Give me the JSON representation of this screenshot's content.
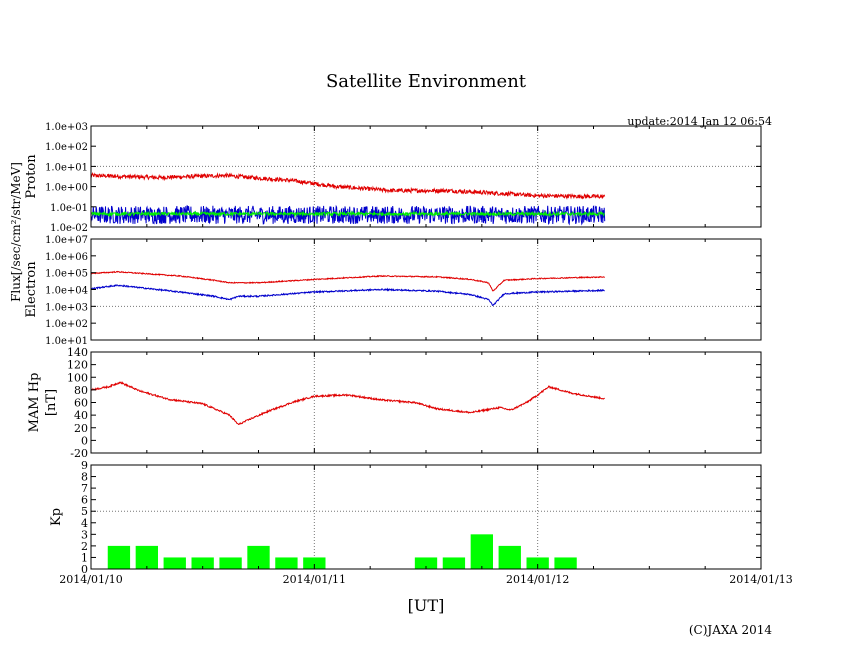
{
  "title": "Satellite Environment",
  "update": "update:2014 Jan 12 06:54",
  "copyright": "(C)JAXA 2014",
  "flux_label": "Flux[/sec/cm²/str/MeV]",
  "colors": {
    "red": "#e00000",
    "blue": "#0000cc",
    "green": "#00ee00",
    "grid": "#777777"
  },
  "chart_data": [
    {
      "id": "proton",
      "type": "line",
      "yscale": "log",
      "ylabel": "Proton",
      "ylim": [
        -2,
        3
      ],
      "yticks": [
        "1.0e-02",
        "1.0e-01",
        "1.0e+00",
        "1.0e+01",
        "1.0e+02",
        "1.0e+03"
      ],
      "series": [
        {
          "name": "proton-red",
          "color": "#e00000",
          "noise": 0.1,
          "x": [
            0.0,
            0.3,
            0.6,
            0.9,
            1.1,
            1.35,
            1.6,
            1.85,
            2.0,
            2.3
          ],
          "values": [
            0.55,
            0.45,
            0.55,
            0.3,
            0.0,
            -0.2,
            -0.2,
            -0.35,
            -0.45,
            -0.5
          ]
        },
        {
          "name": "proton-blue",
          "color": "#0000cc",
          "noise": 0.45,
          "x": [
            0.0,
            2.3
          ],
          "values": [
            -1.4,
            -1.4
          ]
        },
        {
          "name": "proton-green",
          "color": "#00ee00",
          "noise": 0.08,
          "x": [
            0.0,
            2.3
          ],
          "values": [
            -1.35,
            -1.35
          ]
        }
      ]
    },
    {
      "id": "electron",
      "type": "line",
      "yscale": "log",
      "ylabel": "Electron",
      "ylim": [
        1,
        7
      ],
      "yticks": [
        "1.0e+01",
        "1.0e+02",
        "1.0e+03",
        "1.0e+04",
        "1.0e+05",
        "1.0e+06",
        "1.0e+07"
      ],
      "series": [
        {
          "name": "electron-red",
          "color": "#e00000",
          "noise": 0.03,
          "x": [
            0.0,
            0.12,
            0.4,
            0.55,
            0.62,
            0.66,
            0.75,
            1.0,
            1.3,
            1.55,
            1.7,
            1.78,
            1.8,
            1.85,
            2.0,
            2.3
          ],
          "values": [
            4.95,
            5.05,
            4.8,
            4.55,
            4.4,
            4.4,
            4.4,
            4.6,
            4.8,
            4.75,
            4.6,
            4.4,
            3.9,
            4.55,
            4.65,
            4.75
          ]
        },
        {
          "name": "electron-blue",
          "color": "#0000cc",
          "noise": 0.04,
          "x": [
            0.0,
            0.12,
            0.4,
            0.55,
            0.62,
            0.66,
            0.75,
            1.0,
            1.3,
            1.55,
            1.7,
            1.78,
            1.8,
            1.85,
            2.0,
            2.3
          ],
          "values": [
            4.05,
            4.25,
            3.85,
            3.6,
            3.4,
            3.6,
            3.6,
            3.85,
            4.0,
            3.9,
            3.7,
            3.4,
            3.05,
            3.75,
            3.85,
            3.95
          ]
        }
      ]
    },
    {
      "id": "hp",
      "type": "line",
      "yscale": "linear",
      "ylabel": "MAM Hp",
      "ylabel2": "[nT]",
      "ylim": [
        -20,
        140
      ],
      "yticks": [
        "-20",
        "0",
        "20",
        "40",
        "60",
        "80",
        "100",
        "120",
        "140"
      ],
      "series": [
        {
          "name": "hp-red",
          "color": "#e00000",
          "noise": 1.3,
          "x": [
            0.0,
            0.08,
            0.13,
            0.22,
            0.35,
            0.5,
            0.62,
            0.66,
            0.72,
            0.8,
            0.9,
            1.0,
            1.15,
            1.3,
            1.45,
            1.55,
            1.7,
            1.83,
            1.88,
            1.95,
            2.0,
            2.05,
            2.15,
            2.3
          ],
          "values": [
            80,
            85,
            92,
            78,
            65,
            58,
            40,
            25,
            35,
            47,
            60,
            70,
            72,
            64,
            60,
            50,
            44,
            52,
            48,
            60,
            72,
            85,
            75,
            66
          ]
        }
      ]
    },
    {
      "id": "kp",
      "type": "bar",
      "ylabel": "Kp",
      "ylim": [
        0,
        9
      ],
      "yticks": [
        "0",
        "1",
        "2",
        "3",
        "4",
        "5",
        "6",
        "7",
        "8",
        "9"
      ],
      "color": "#00ff00",
      "bars": [
        {
          "x": 0.125,
          "value": 2
        },
        {
          "x": 0.25,
          "value": 2
        },
        {
          "x": 0.375,
          "value": 1
        },
        {
          "x": 0.5,
          "value": 1
        },
        {
          "x": 0.625,
          "value": 1
        },
        {
          "x": 0.75,
          "value": 2
        },
        {
          "x": 0.875,
          "value": 1
        },
        {
          "x": 1.0,
          "value": 1
        },
        {
          "x": 1.5,
          "value": 1
        },
        {
          "x": 1.625,
          "value": 1
        },
        {
          "x": 1.75,
          "value": 3
        },
        {
          "x": 1.875,
          "value": 2
        },
        {
          "x": 2.0,
          "value": 1
        },
        {
          "x": 2.125,
          "value": 1
        }
      ]
    }
  ],
  "x_axis": {
    "label": "[UT]",
    "range_days": [
      0,
      3
    ],
    "ticks": [
      "2014/01/10",
      "2014/01/11",
      "2014/01/12",
      "2014/01/13"
    ]
  }
}
